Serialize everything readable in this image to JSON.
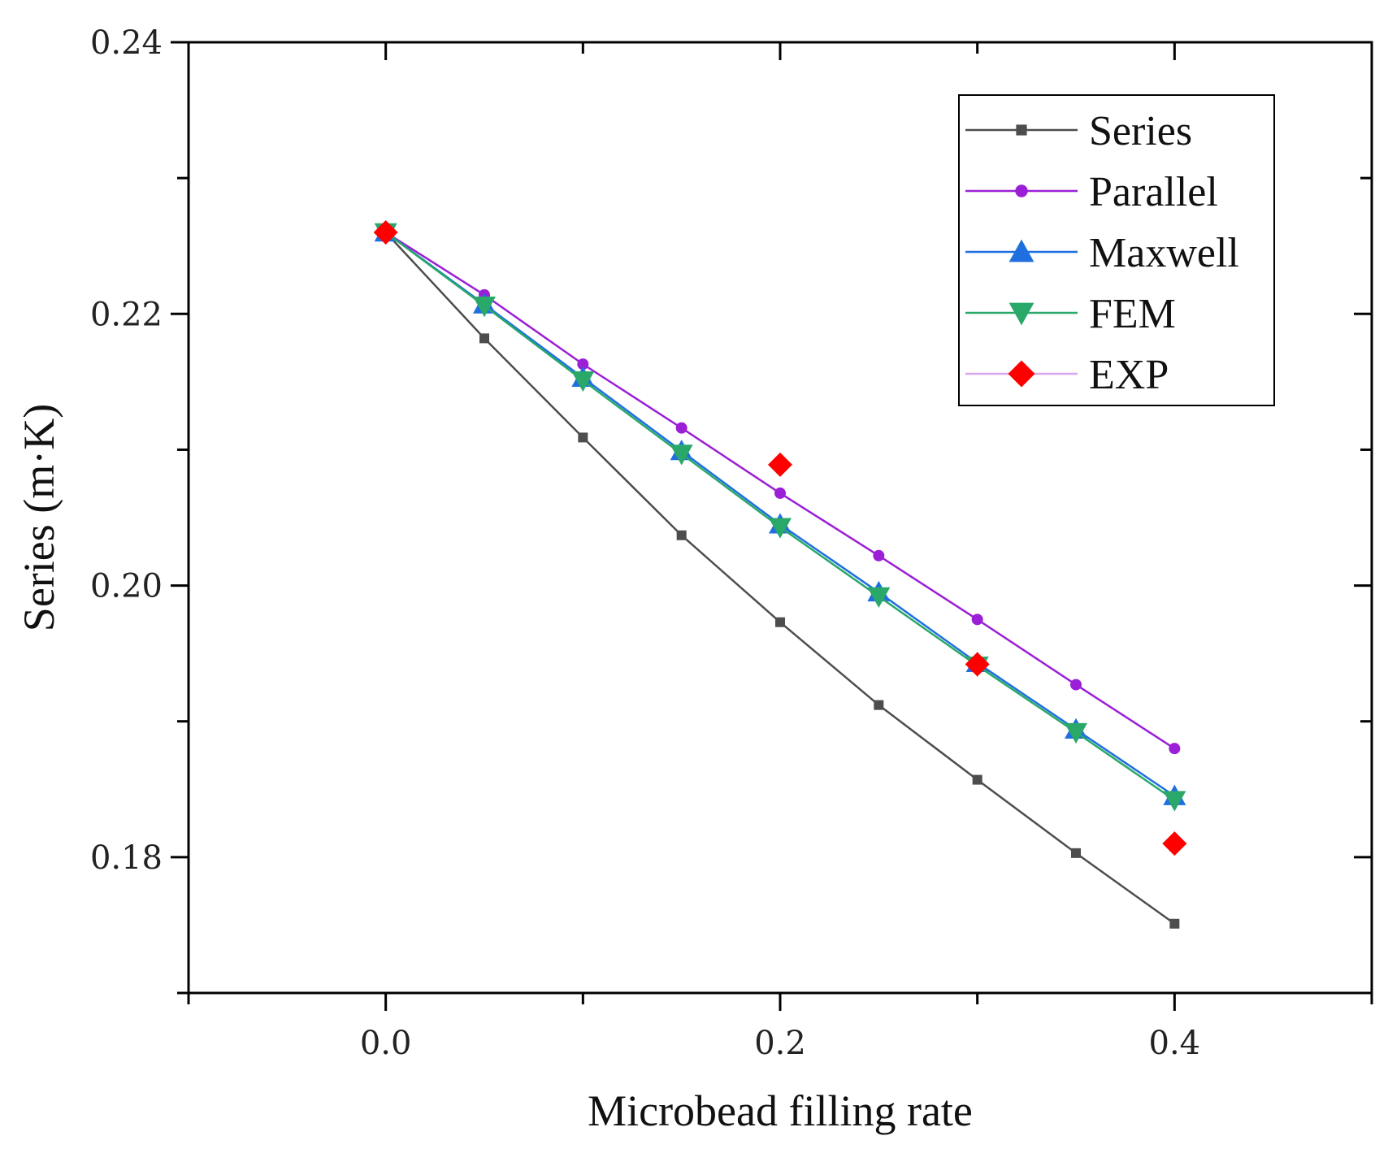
{
  "chart_data": {
    "type": "line",
    "xlabel": "Microbead filling rate",
    "ylabel": "Series (m·K)",
    "xlim": [
      -0.1,
      0.5
    ],
    "ylim": [
      0.17,
      0.24
    ],
    "xticks": [
      "0.0",
      "0.2",
      "0.4"
    ],
    "yticks": [
      "0.18",
      "0.20",
      "0.22",
      "0.24"
    ],
    "grid": false,
    "legend_position": "top-right",
    "series": [
      {
        "name": "Series",
        "color": "#4d4d4d",
        "marker": "square",
        "line": true,
        "x": [
          0.0,
          0.05,
          0.1,
          0.15,
          0.2,
          0.25,
          0.3,
          0.35,
          0.4
        ],
        "y": [
          0.226,
          0.2182,
          0.2109,
          0.2037,
          0.1973,
          0.1912,
          0.1857,
          0.1803,
          0.1751
        ]
      },
      {
        "name": "Parallel",
        "color": "#9b1fd6",
        "marker": "circle",
        "line": true,
        "x": [
          0.0,
          0.05,
          0.1,
          0.15,
          0.2,
          0.25,
          0.3,
          0.35,
          0.4
        ],
        "y": [
          0.226,
          0.2214,
          0.2163,
          0.2116,
          0.2068,
          0.2022,
          0.1975,
          0.1927,
          0.188
        ]
      },
      {
        "name": "Maxwell",
        "color": "#1f6fe0",
        "marker": "triangle-up",
        "line": true,
        "x": [
          0.0,
          0.05,
          0.1,
          0.15,
          0.2,
          0.25,
          0.3,
          0.35,
          0.4
        ],
        "y": [
          0.226,
          0.2207,
          0.2153,
          0.2099,
          0.2045,
          0.1995,
          0.1943,
          0.1894,
          0.1845
        ]
      },
      {
        "name": "FEM",
        "color": "#2aa86a",
        "marker": "triangle-down",
        "line": true,
        "x": [
          0.0,
          0.05,
          0.1,
          0.15,
          0.2,
          0.25,
          0.3,
          0.35,
          0.4
        ],
        "y": [
          0.226,
          0.2206,
          0.2151,
          0.2097,
          0.2043,
          0.1992,
          0.1941,
          0.1892,
          0.1842
        ]
      },
      {
        "name": "EXP",
        "color": "#ff0000",
        "marker": "diamond",
        "line": false,
        "x": [
          0.0,
          0.2,
          0.3,
          0.4
        ],
        "y": [
          0.226,
          0.2089,
          0.1942,
          0.181
        ]
      }
    ]
  }
}
